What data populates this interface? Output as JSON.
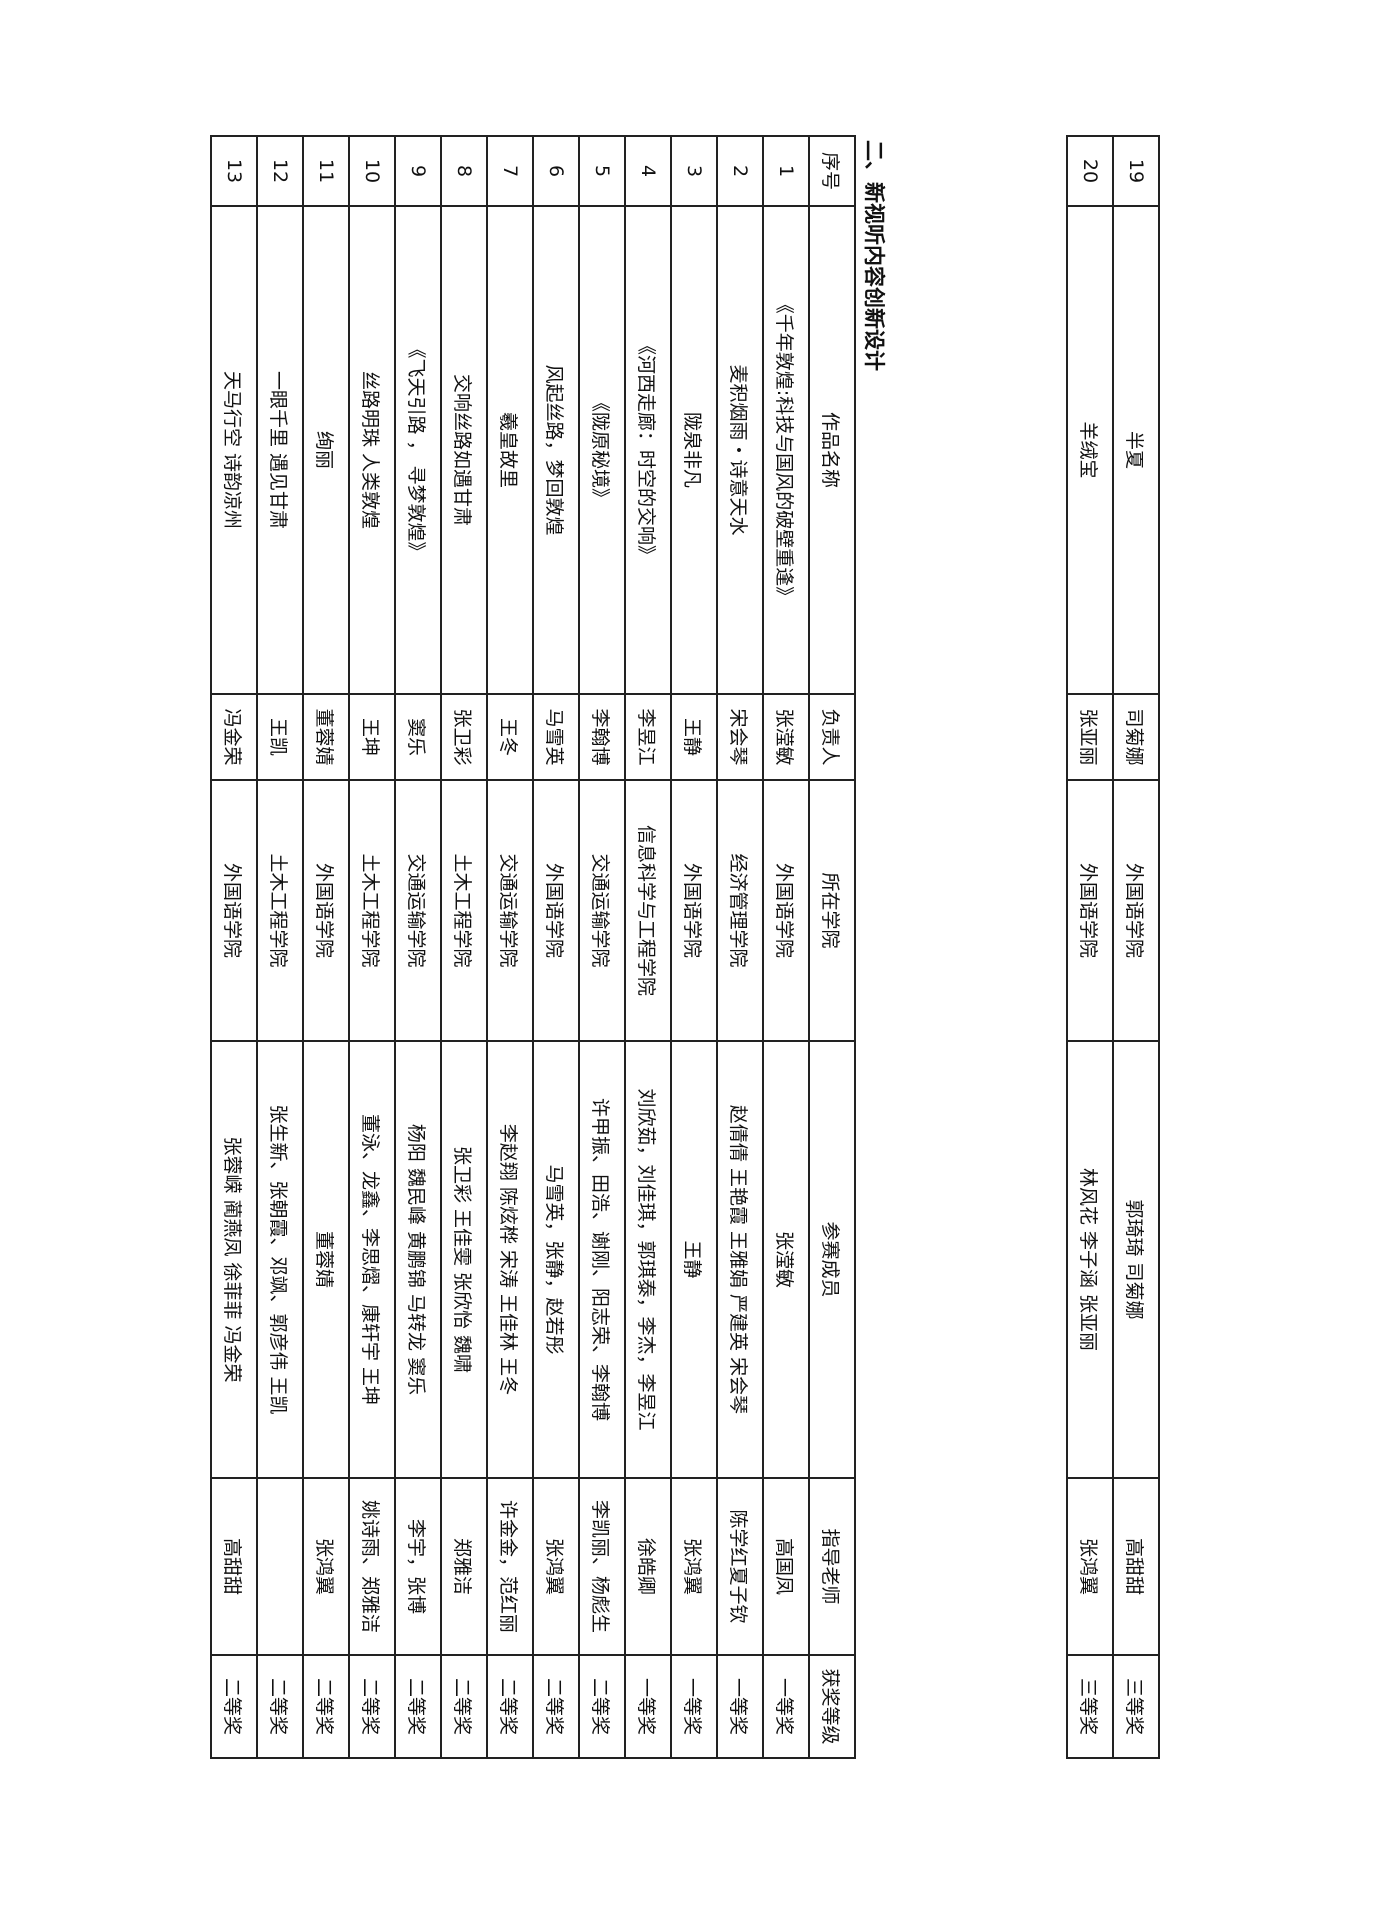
{
  "prev_table": {
    "rows": [
      {
        "no": "19",
        "title": "半夏",
        "leader": "司菊娜",
        "college": "外国语学院",
        "members": "郭琦琦 司菊娜",
        "advisor": "高甜甜",
        "award": "三等奖"
      },
      {
        "no": "20",
        "title": "羊绒宝",
        "leader": "张亚丽",
        "college": "外国语学院",
        "members": "林风花 李子涵 张亚丽",
        "advisor": "张鸿翼",
        "award": "三等奖"
      }
    ]
  },
  "section_heading": "二、新视听内容创新设计",
  "main_table": {
    "headers": {
      "no": "序号",
      "title": "作品名称",
      "leader": "负责人",
      "college": "所在学院",
      "members": "参赛成员",
      "advisor": "指导老师",
      "award": "获奖等级"
    },
    "rows": [
      {
        "no": "1",
        "title": "《千年敦煌:科技与国风的破壁重逢》",
        "leader": "张滢敏",
        "college": "外国语学院",
        "members": "张滢敏",
        "advisor": "高国凤",
        "award": "一等奖"
      },
      {
        "no": "2",
        "title": "麦积烟雨・诗意天水",
        "leader": "宋会琴",
        "college": "经济管理学院",
        "members": "赵倩倩 王艳霞 王雅娟 严建英 宋会琴",
        "advisor": "陈学红夏子钦",
        "award": "一等奖"
      },
      {
        "no": "3",
        "title": "陇泉非凡",
        "leader": "王静",
        "college": "外国语学院",
        "members": "王静",
        "advisor": "张鸿翼",
        "award": "一等奖"
      },
      {
        "no": "4",
        "title": "《河西走廊：时空的交响》",
        "leader": "李昱江",
        "college": "信息科学与工程学院",
        "members": "刘欣茹，刘佳琪，郭琪泰，李杰，李昱江",
        "advisor": "徐皓卿",
        "award": "一等奖"
      },
      {
        "no": "5",
        "title": "《陇原秘境》",
        "leader": "李翰博",
        "college": "交通运输学院",
        "members": "许甲振、田浩、谢刚、阳志荣、李翰博",
        "advisor": "李凯丽、杨彪生",
        "award": "二等奖"
      },
      {
        "no": "6",
        "title": "风起丝路，梦回敦煌",
        "leader": "马雪英",
        "college": "外国语学院",
        "members": "马雪英，张静，赵若彤",
        "advisor": "张鸿翼",
        "award": "二等奖"
      },
      {
        "no": "7",
        "title": "羲皇故里",
        "leader": "王冬",
        "college": "交通运输学院",
        "members": "李赵翔 陈炫桦 宋涛 王佳林 王冬",
        "advisor": "许金金，范红丽",
        "award": "二等奖"
      },
      {
        "no": "8",
        "title": "交响丝路如遇甘肃",
        "leader": "张卫彩",
        "college": "土木工程学院",
        "members": "张卫彩 王佳雯 张欣怡 魏啸",
        "advisor": "郑雅洁",
        "award": "二等奖"
      },
      {
        "no": "9",
        "title": "《飞天引路 ， 寻梦敦煌》",
        "leader": "窦乐",
        "college": "交通运输学院",
        "members": "杨阳 魏民峰 黄鹏锦 马转龙 窦乐",
        "advisor": "李宇，张博",
        "award": "二等奖"
      },
      {
        "no": "10",
        "title": "丝路明珠 人类敦煌",
        "leader": "王坤",
        "college": "土木工程学院",
        "members": "董泳、龙鑫、李思熠、康轩宇 王坤",
        "advisor": "姚诗雨、郑雅洁",
        "award": "二等奖"
      },
      {
        "no": "11",
        "title": "绚丽",
        "leader": "董蓉婧",
        "college": "外国语学院",
        "members": "董蓉婧",
        "advisor": "张鸿翼",
        "award": "二等奖"
      },
      {
        "no": "12",
        "title": "一眼千里 遇见甘肃",
        "leader": "王凯",
        "college": "土木工程学院",
        "members": "张生新、张朝霞、邓飒、郭彦伟 王凯",
        "advisor": "",
        "award": "二等奖"
      },
      {
        "no": "13",
        "title": "天马行空 诗韵凉州",
        "leader": "冯金荣",
        "college": "外国语学院",
        "members": "张蓉嵘 蔺燕凤 徐菲菲 冯金荣",
        "advisor": "高甜甜",
        "award": "二等奖"
      }
    ]
  }
}
